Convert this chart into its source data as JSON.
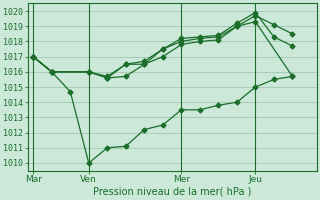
{
  "title": "Pression niveau de la mer( hPa )",
  "bg_color": "#cce8d8",
  "grid_color": "#a0c8b0",
  "line_color": "#1a6e2a",
  "ylim": [
    1009.5,
    1020.5
  ],
  "yticks": [
    1010,
    1011,
    1012,
    1013,
    1014,
    1015,
    1016,
    1017,
    1018,
    1019,
    1020
  ],
  "xtick_labels": [
    "Mar",
    "Ven",
    "Mer",
    "Jeu"
  ],
  "xtick_positions": [
    0,
    3,
    8,
    12
  ],
  "xlim": [
    -0.3,
    15.3
  ],
  "series1_x": [
    0,
    1,
    2,
    3,
    4,
    5,
    6,
    7,
    8,
    9,
    10,
    11,
    12,
    13,
    14
  ],
  "series1_y": [
    1017.0,
    1016.0,
    1014.7,
    1010.0,
    1011.0,
    1011.1,
    1012.2,
    1012.5,
    1013.5,
    1013.5,
    1013.8,
    1014.0,
    1015.0,
    1015.5,
    1015.7
  ],
  "series2_x": [
    0,
    1,
    3,
    4,
    5,
    6,
    7,
    8,
    9,
    10,
    11,
    12,
    14
  ],
  "series2_y": [
    1017.0,
    1016.0,
    1016.0,
    1015.6,
    1015.7,
    1016.5,
    1017.0,
    1017.8,
    1018.0,
    1018.1,
    1019.0,
    1019.3,
    1015.7
  ],
  "series3_x": [
    0,
    1,
    3,
    4,
    5,
    6,
    7,
    8,
    9,
    10,
    11,
    12,
    13,
    14
  ],
  "series3_y": [
    1017.0,
    1016.0,
    1016.0,
    1015.6,
    1016.5,
    1016.5,
    1017.5,
    1018.0,
    1018.2,
    1018.3,
    1019.0,
    1019.7,
    1019.1,
    1018.5
  ],
  "series4_x": [
    0,
    1,
    3,
    4,
    5,
    6,
    7,
    8,
    9,
    10,
    11,
    12,
    13,
    14
  ],
  "series4_y": [
    1017.0,
    1016.0,
    1016.0,
    1015.7,
    1016.5,
    1016.7,
    1017.5,
    1018.2,
    1018.3,
    1018.4,
    1019.2,
    1019.9,
    1018.3,
    1017.7
  ]
}
